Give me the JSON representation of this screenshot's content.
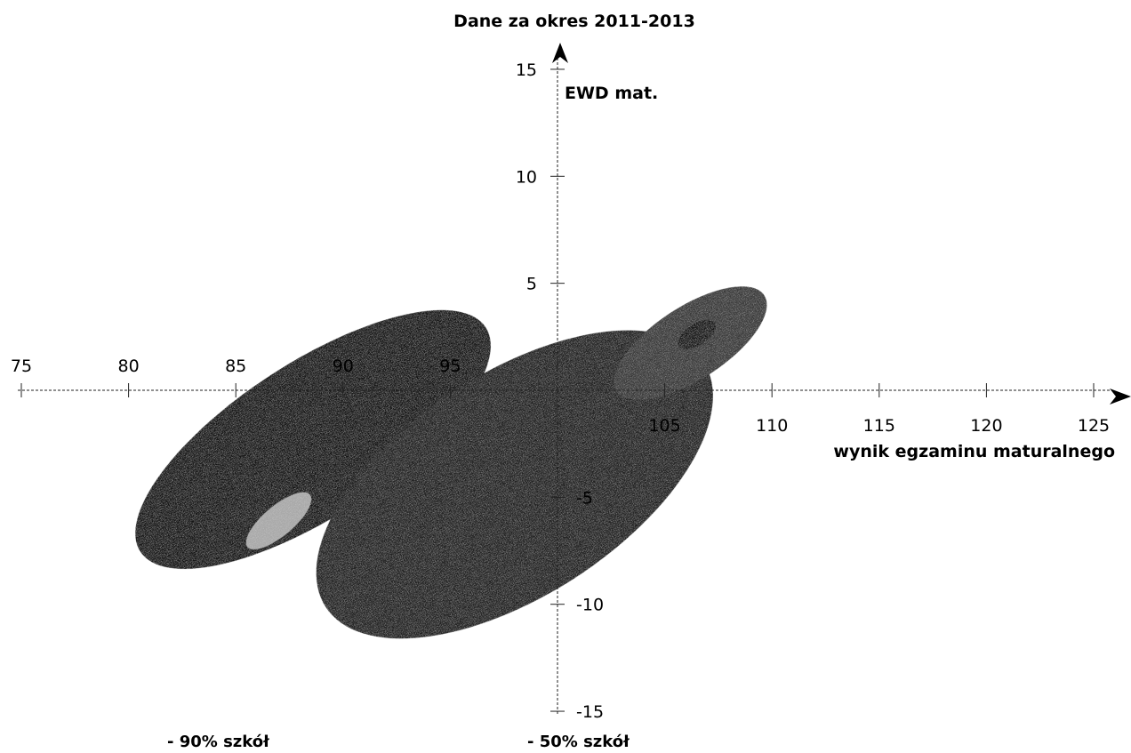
{
  "chart_data": {
    "type": "scatter",
    "title": "Dane za okres 2011-2013",
    "xlabel": "wynik egzaminu maturalnego",
    "ylabel": "EWD mat.",
    "xlim": [
      75,
      125
    ],
    "ylim": [
      -15,
      15
    ],
    "x_origin": 100,
    "y_origin": 0,
    "grid": false,
    "x_ticks": [
      {
        "value": 75,
        "label": "75"
      },
      {
        "value": 80,
        "label": "80"
      },
      {
        "value": 85,
        "label": "85"
      },
      {
        "value": 90,
        "label": "90"
      },
      {
        "value": 95,
        "label": "95"
      },
      {
        "value": 105,
        "label": "105"
      },
      {
        "value": 110,
        "label": "110"
      },
      {
        "value": 115,
        "label": "115"
      },
      {
        "value": 120,
        "label": "120"
      },
      {
        "value": 125,
        "label": "125"
      }
    ],
    "y_ticks": [
      {
        "value": 15,
        "label": "15"
      },
      {
        "value": 10,
        "label": "10"
      },
      {
        "value": 5,
        "label": "5"
      },
      {
        "value": -5,
        "label": "-5"
      },
      {
        "value": -10,
        "label": "-10"
      },
      {
        "value": -15,
        "label": "-15"
      }
    ],
    "ellipses": [
      {
        "cx": 88.6,
        "cy": -2.3,
        "rx": 9.6,
        "ry": 3.6,
        "angle_deg": 33,
        "color": "#161616"
      },
      {
        "cx": 98.0,
        "cy": -4.4,
        "rx": 10.5,
        "ry": 5.2,
        "angle_deg": 33,
        "color": "#242424"
      },
      {
        "cx": 106.2,
        "cy": 2.2,
        "rx": 4.1,
        "ry": 1.7,
        "angle_deg": 33,
        "color": "#3a3a3a"
      },
      {
        "cx": 106.5,
        "cy": 2.6,
        "rx": 1.0,
        "ry": 0.5,
        "angle_deg": 33,
        "color": "#151515"
      },
      {
        "cx": 87.0,
        "cy": -6.1,
        "rx": 1.9,
        "ry": 0.7,
        "angle_deg": 40,
        "color": "#a9a9a9"
      }
    ],
    "legend": [
      {
        "label": "- 90% szkół"
      },
      {
        "label": "- 50% szkół"
      }
    ]
  }
}
